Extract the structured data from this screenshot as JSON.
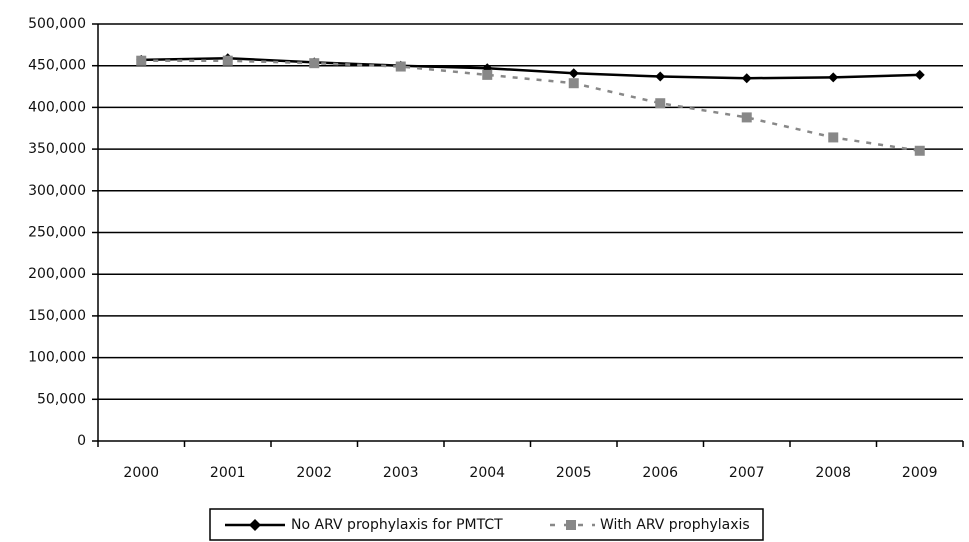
{
  "chart_data": {
    "type": "line",
    "title": "",
    "xlabel": "",
    "ylabel": "",
    "ylim": [
      0,
      500000
    ],
    "yticks": [
      "0",
      "50,000",
      "100,000",
      "150,000",
      "200,000",
      "250,000",
      "300,000",
      "350,000",
      "400,000",
      "450,000",
      "500,000"
    ],
    "categories": [
      "2000",
      "2001",
      "2002",
      "2003",
      "2004",
      "2005",
      "2006",
      "2007",
      "2008",
      "2009"
    ],
    "grid": "horizontal",
    "legend_position": "bottom",
    "series": [
      {
        "name": "No ARV prophylaxis for PMTCT",
        "style": "solid",
        "marker": "diamond",
        "color": "#000000",
        "values": [
          457000,
          459000,
          454000,
          450000,
          447000,
          441000,
          437000,
          435000,
          436000,
          439000
        ]
      },
      {
        "name": "With ARV prophylaxis",
        "style": "dashed",
        "marker": "square",
        "color": "#888888",
        "values": [
          456000,
          456000,
          453000,
          449000,
          439000,
          429000,
          405000,
          388000,
          364000,
          348000
        ]
      }
    ]
  }
}
